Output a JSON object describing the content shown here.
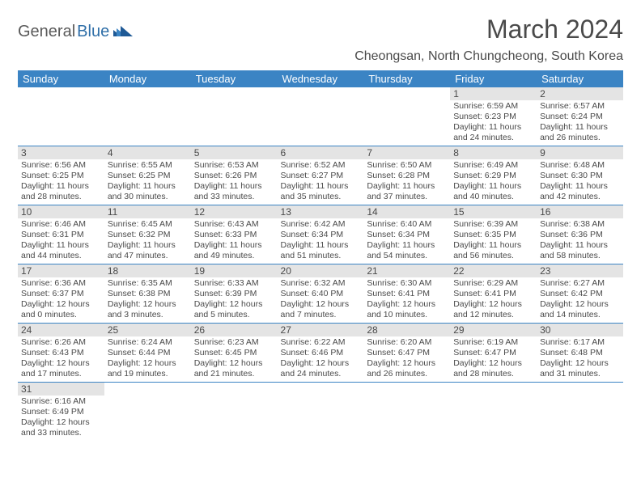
{
  "brand": {
    "part1": "General",
    "part2": "Blue"
  },
  "title": "March 2024",
  "location": "Cheongsan, North Chungcheong, South Korea",
  "header_bg": "#3b84c4",
  "border_color": "#3b84c4",
  "daynum_bg": "#e4e4e4",
  "text_color": "#4a4a4a",
  "days": [
    "Sunday",
    "Monday",
    "Tuesday",
    "Wednesday",
    "Thursday",
    "Friday",
    "Saturday"
  ],
  "weeks": [
    [
      null,
      null,
      null,
      null,
      null,
      {
        "n": "1",
        "sr": "Sunrise: 6:59 AM",
        "ss": "Sunset: 6:23 PM",
        "dl": "Daylight: 11 hours and 24 minutes."
      },
      {
        "n": "2",
        "sr": "Sunrise: 6:57 AM",
        "ss": "Sunset: 6:24 PM",
        "dl": "Daylight: 11 hours and 26 minutes."
      }
    ],
    [
      {
        "n": "3",
        "sr": "Sunrise: 6:56 AM",
        "ss": "Sunset: 6:25 PM",
        "dl": "Daylight: 11 hours and 28 minutes."
      },
      {
        "n": "4",
        "sr": "Sunrise: 6:55 AM",
        "ss": "Sunset: 6:25 PM",
        "dl": "Daylight: 11 hours and 30 minutes."
      },
      {
        "n": "5",
        "sr": "Sunrise: 6:53 AM",
        "ss": "Sunset: 6:26 PM",
        "dl": "Daylight: 11 hours and 33 minutes."
      },
      {
        "n": "6",
        "sr": "Sunrise: 6:52 AM",
        "ss": "Sunset: 6:27 PM",
        "dl": "Daylight: 11 hours and 35 minutes."
      },
      {
        "n": "7",
        "sr": "Sunrise: 6:50 AM",
        "ss": "Sunset: 6:28 PM",
        "dl": "Daylight: 11 hours and 37 minutes."
      },
      {
        "n": "8",
        "sr": "Sunrise: 6:49 AM",
        "ss": "Sunset: 6:29 PM",
        "dl": "Daylight: 11 hours and 40 minutes."
      },
      {
        "n": "9",
        "sr": "Sunrise: 6:48 AM",
        "ss": "Sunset: 6:30 PM",
        "dl": "Daylight: 11 hours and 42 minutes."
      }
    ],
    [
      {
        "n": "10",
        "sr": "Sunrise: 6:46 AM",
        "ss": "Sunset: 6:31 PM",
        "dl": "Daylight: 11 hours and 44 minutes."
      },
      {
        "n": "11",
        "sr": "Sunrise: 6:45 AM",
        "ss": "Sunset: 6:32 PM",
        "dl": "Daylight: 11 hours and 47 minutes."
      },
      {
        "n": "12",
        "sr": "Sunrise: 6:43 AM",
        "ss": "Sunset: 6:33 PM",
        "dl": "Daylight: 11 hours and 49 minutes."
      },
      {
        "n": "13",
        "sr": "Sunrise: 6:42 AM",
        "ss": "Sunset: 6:34 PM",
        "dl": "Daylight: 11 hours and 51 minutes."
      },
      {
        "n": "14",
        "sr": "Sunrise: 6:40 AM",
        "ss": "Sunset: 6:34 PM",
        "dl": "Daylight: 11 hours and 54 minutes."
      },
      {
        "n": "15",
        "sr": "Sunrise: 6:39 AM",
        "ss": "Sunset: 6:35 PM",
        "dl": "Daylight: 11 hours and 56 minutes."
      },
      {
        "n": "16",
        "sr": "Sunrise: 6:38 AM",
        "ss": "Sunset: 6:36 PM",
        "dl": "Daylight: 11 hours and 58 minutes."
      }
    ],
    [
      {
        "n": "17",
        "sr": "Sunrise: 6:36 AM",
        "ss": "Sunset: 6:37 PM",
        "dl": "Daylight: 12 hours and 0 minutes."
      },
      {
        "n": "18",
        "sr": "Sunrise: 6:35 AM",
        "ss": "Sunset: 6:38 PM",
        "dl": "Daylight: 12 hours and 3 minutes."
      },
      {
        "n": "19",
        "sr": "Sunrise: 6:33 AM",
        "ss": "Sunset: 6:39 PM",
        "dl": "Daylight: 12 hours and 5 minutes."
      },
      {
        "n": "20",
        "sr": "Sunrise: 6:32 AM",
        "ss": "Sunset: 6:40 PM",
        "dl": "Daylight: 12 hours and 7 minutes."
      },
      {
        "n": "21",
        "sr": "Sunrise: 6:30 AM",
        "ss": "Sunset: 6:41 PM",
        "dl": "Daylight: 12 hours and 10 minutes."
      },
      {
        "n": "22",
        "sr": "Sunrise: 6:29 AM",
        "ss": "Sunset: 6:41 PM",
        "dl": "Daylight: 12 hours and 12 minutes."
      },
      {
        "n": "23",
        "sr": "Sunrise: 6:27 AM",
        "ss": "Sunset: 6:42 PM",
        "dl": "Daylight: 12 hours and 14 minutes."
      }
    ],
    [
      {
        "n": "24",
        "sr": "Sunrise: 6:26 AM",
        "ss": "Sunset: 6:43 PM",
        "dl": "Daylight: 12 hours and 17 minutes."
      },
      {
        "n": "25",
        "sr": "Sunrise: 6:24 AM",
        "ss": "Sunset: 6:44 PM",
        "dl": "Daylight: 12 hours and 19 minutes."
      },
      {
        "n": "26",
        "sr": "Sunrise: 6:23 AM",
        "ss": "Sunset: 6:45 PM",
        "dl": "Daylight: 12 hours and 21 minutes."
      },
      {
        "n": "27",
        "sr": "Sunrise: 6:22 AM",
        "ss": "Sunset: 6:46 PM",
        "dl": "Daylight: 12 hours and 24 minutes."
      },
      {
        "n": "28",
        "sr": "Sunrise: 6:20 AM",
        "ss": "Sunset: 6:47 PM",
        "dl": "Daylight: 12 hours and 26 minutes."
      },
      {
        "n": "29",
        "sr": "Sunrise: 6:19 AM",
        "ss": "Sunset: 6:47 PM",
        "dl": "Daylight: 12 hours and 28 minutes."
      },
      {
        "n": "30",
        "sr": "Sunrise: 6:17 AM",
        "ss": "Sunset: 6:48 PM",
        "dl": "Daylight: 12 hours and 31 minutes."
      }
    ],
    [
      {
        "n": "31",
        "sr": "Sunrise: 6:16 AM",
        "ss": "Sunset: 6:49 PM",
        "dl": "Daylight: 12 hours and 33 minutes."
      },
      null,
      null,
      null,
      null,
      null,
      null
    ]
  ]
}
